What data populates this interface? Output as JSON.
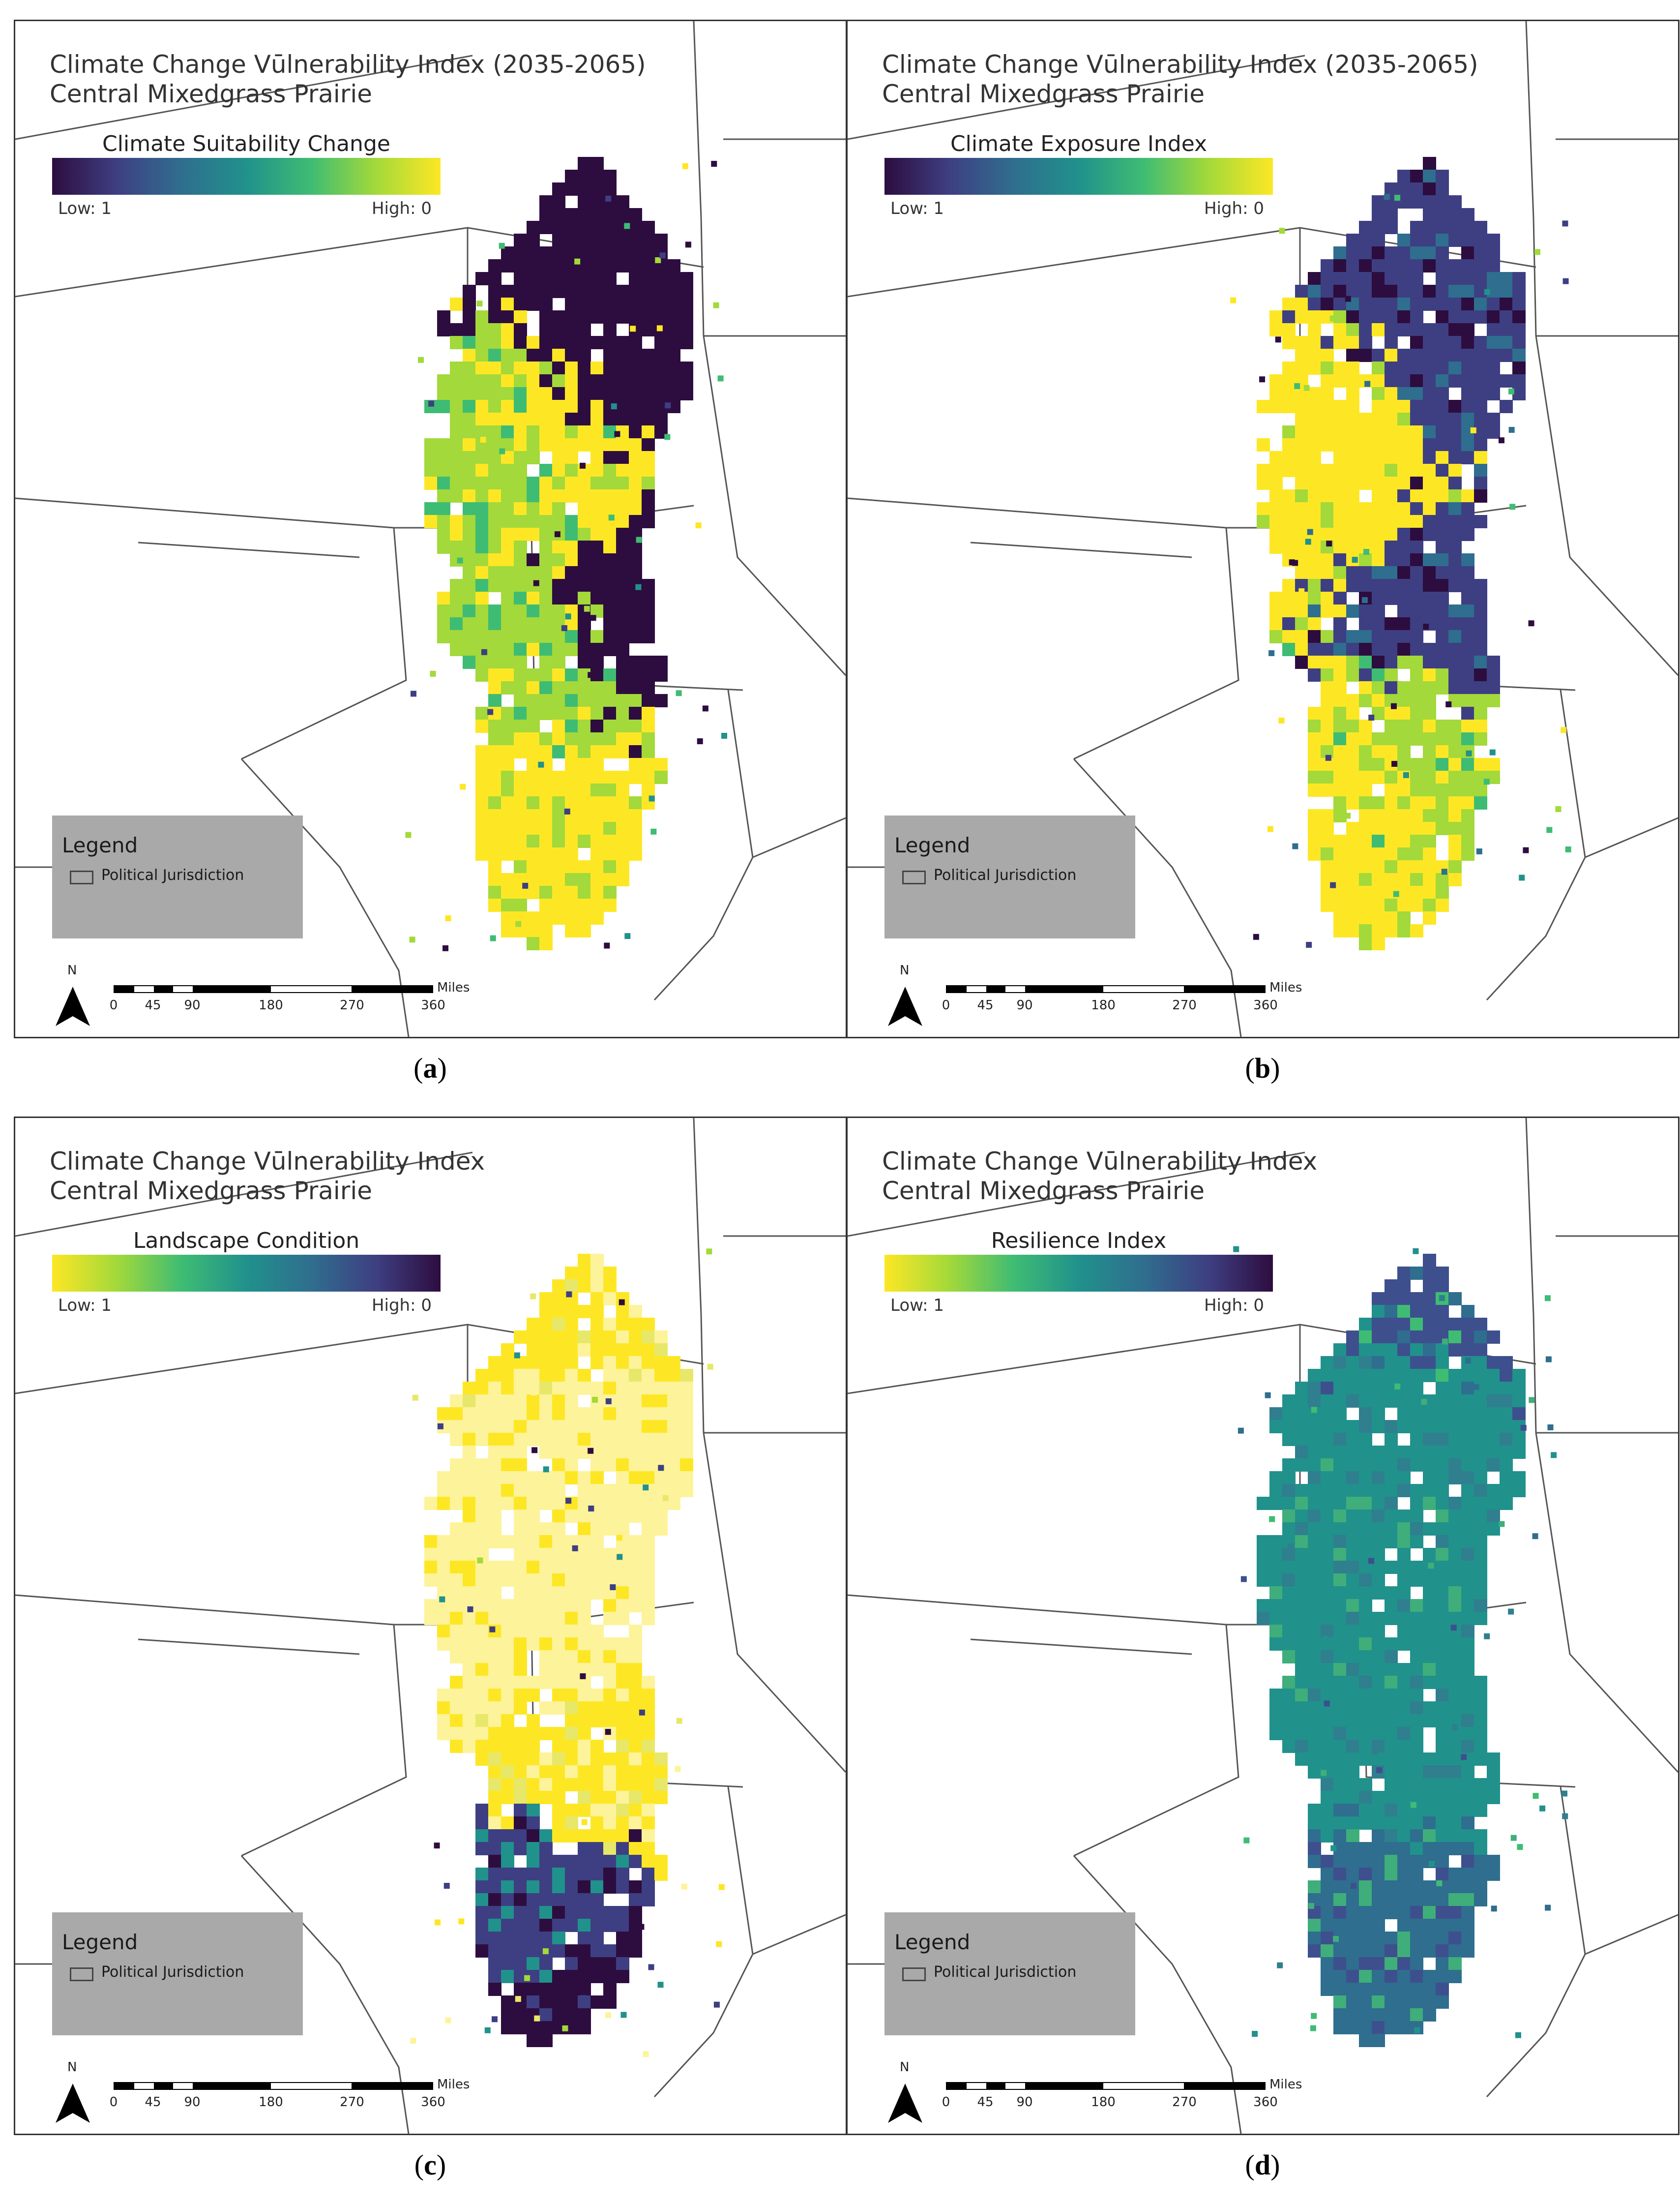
{
  "panels": [
    {
      "id": "a",
      "title_line1": "Climate Change Vūlnerability Index (2035-2065)",
      "title_line2": "Central Mixedgrass Prairie",
      "ramp_title": "Climate Suitability Change",
      "ramp_low": "Low: 1",
      "ramp_high": "High: 0",
      "ramp_colors": [
        "#2d0d3f",
        "#3e3f82",
        "#2f6e8e",
        "#21918c",
        "#3fbc73",
        "#a3d93a",
        "#fde725"
      ],
      "caption_open": "(",
      "caption_letter": "a",
      "caption_close": ")",
      "legend_title": "Legend",
      "legend_item": "Political Jurisdiction",
      "north": "N",
      "scale_units": "Miles",
      "scale_ticks": [
        "0",
        "45",
        "90",
        "180",
        "270",
        "360"
      ]
    },
    {
      "id": "b",
      "title_line1": "Climate Change Vūlnerability Index (2035-2065)",
      "title_line2": "Central Mixedgrass Prairie",
      "ramp_title": "Climate Exposure Index",
      "ramp_low": "Low: 1",
      "ramp_high": "High: 0",
      "ramp_colors": [
        "#2d0d3f",
        "#3e3f82",
        "#2f6e8e",
        "#21918c",
        "#3fbc73",
        "#a3d93a",
        "#fde725"
      ],
      "caption_open": "(",
      "caption_letter": "b",
      "caption_close": ")",
      "legend_title": "Legend",
      "legend_item": "Political Jurisdiction",
      "north": "N",
      "scale_units": "Miles",
      "scale_ticks": [
        "0",
        "45",
        "90",
        "180",
        "270",
        "360"
      ]
    },
    {
      "id": "c",
      "title_line1": "Climate Change Vūlnerability Index",
      "title_line2": "Central Mixedgrass Prairie",
      "ramp_title": "Landscape Condition",
      "ramp_low": "Low: 1",
      "ramp_high": "High: 0",
      "ramp_colors": [
        "#fde725",
        "#a3d93a",
        "#3fbc73",
        "#21918c",
        "#2f6e8e",
        "#3e3f82",
        "#2d0d3f"
      ],
      "caption_open": "(",
      "caption_letter": "c",
      "caption_close": ")",
      "legend_title": "Legend",
      "legend_item": "Political Jurisdiction",
      "north": "N",
      "scale_units": "Miles",
      "scale_ticks": [
        "0",
        "45",
        "90",
        "180",
        "270",
        "360"
      ]
    },
    {
      "id": "d",
      "title_line1": "Climate Change Vūlnerability Index",
      "title_line2": "Central Mixedgrass Prairie",
      "ramp_title": "Resilience Index",
      "ramp_low": "Low: 1",
      "ramp_high": "High: 0",
      "ramp_colors": [
        "#fde725",
        "#a3d93a",
        "#3fbc73",
        "#21918c",
        "#2f6e8e",
        "#3e3f82",
        "#2d0d3f"
      ],
      "caption_open": "(",
      "caption_letter": "d",
      "caption_close": ")",
      "legend_title": "Legend",
      "legend_item": "Political Jurisdiction",
      "north": "N",
      "scale_units": "Miles",
      "scale_ticks": [
        "0",
        "45",
        "90",
        "180",
        "270",
        "360"
      ]
    }
  ],
  "raster_colors": {
    "a": [
      "#2d0d3f",
      "#2d0d3f",
      "#3e3f82",
      "#21918c",
      "#3fbc73",
      "#a3d93a",
      "#fde725"
    ],
    "b": [
      "#2d0d3f",
      "#3e3f82",
      "#2f6e8e",
      "#21918c",
      "#3fbc73",
      "#a3d93a",
      "#fde725"
    ],
    "c": [
      "#fdf39a",
      "#fde725",
      "#e7e86a",
      "#a3d93a",
      "#21918c",
      "#3e3f82",
      "#2d0d3f"
    ],
    "d": [
      "#21918c",
      "#2f7f8e",
      "#21918c",
      "#3fae7a",
      "#2f6e8e",
      "#3e4f8e",
      "#3fbc73"
    ]
  },
  "boundary_color": "#555555"
}
